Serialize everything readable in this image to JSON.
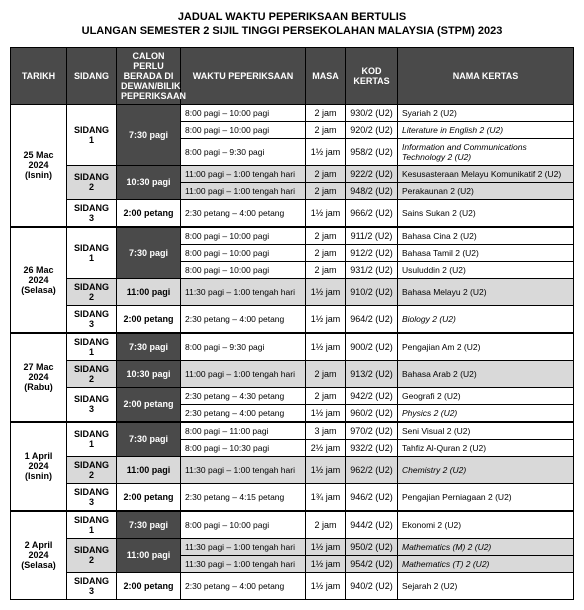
{
  "title_line1": "JADUAL WAKTU PEPERIKSAAN BERTULIS",
  "title_line2": "ULANGAN SEMESTER 2 SIJIL TINGGI PERSEKOLAHAN MALAYSIA (STPM) 2023",
  "headers": {
    "tarikh": "TARIKH",
    "sidang": "SIDANG",
    "calon": "CALON PERLU BERADA DI DEWAN/BILIK PEPERIKSAAN",
    "waktu": "WAKTU PEPERIKSAAN",
    "masa": "MASA",
    "kod": "KOD KERTAS",
    "nama": "NAMA KERTAS"
  },
  "days": [
    {
      "tarikh": "25 Mac 2024\n(Isnin)",
      "sidangs": [
        {
          "sidang": "SIDANG 1",
          "masuk": "7:30 pagi",
          "dark": true,
          "rows": [
            {
              "waktu": "8:00 pagi – 10:00 pagi",
              "masa": "2 jam",
              "kod": "930/2 (U2)",
              "nama": "Syariah 2 (U2)",
              "shade": false,
              "italic": false
            },
            {
              "waktu": "8:00 pagi – 10:00 pagi",
              "masa": "2 jam",
              "kod": "920/2 (U2)",
              "nama": "Literature in English 2 (U2)",
              "shade": false,
              "italic": true
            },
            {
              "waktu": "8:00 pagi – 9:30 pagi",
              "masa": "1½ jam",
              "kod": "958/2 (U2)",
              "nama": "Information and Communications Technology 2 (U2)",
              "shade": false,
              "italic": true
            }
          ]
        },
        {
          "sidang": "SIDANG 2",
          "masuk": "10:30 pagi",
          "dark": true,
          "rows": [
            {
              "waktu": "11:00 pagi – 1:00 tengah hari",
              "masa": "2 jam",
              "kod": "922/2 (U2)",
              "nama": "Kesusasteraan Melayu Komunikatif 2 (U2)",
              "shade": true,
              "italic": false
            },
            {
              "waktu": "11:00 pagi – 1:00 tengah hari",
              "masa": "2 jam",
              "kod": "948/2 (U2)",
              "nama": "Perakaunan 2 (U2)",
              "shade": true,
              "italic": false
            }
          ]
        },
        {
          "sidang": "SIDANG 3",
          "masuk": "2:00 petang",
          "dark": false,
          "rows": [
            {
              "waktu": "2:30 petang – 4:00 petang",
              "masa": "1½ jam",
              "kod": "966/2 (U2)",
              "nama": "Sains Sukan 2 (U2)",
              "shade": false,
              "italic": false
            }
          ]
        }
      ]
    },
    {
      "tarikh": "26 Mac 2024\n(Selasa)",
      "sidangs": [
        {
          "sidang": "SIDANG 1",
          "masuk": "7:30 pagi",
          "dark": true,
          "rows": [
            {
              "waktu": "8:00 pagi – 10:00 pagi",
              "masa": "2 jam",
              "kod": "911/2 (U2)",
              "nama": "Bahasa Cina 2 (U2)",
              "shade": false,
              "italic": false
            },
            {
              "waktu": "8:00 pagi – 10:00 pagi",
              "masa": "2 jam",
              "kod": "912/2 (U2)",
              "nama": "Bahasa Tamil 2 (U2)",
              "shade": false,
              "italic": false
            },
            {
              "waktu": "8:00 pagi – 10:00 pagi",
              "masa": "2 jam",
              "kod": "931/2 (U2)",
              "nama": "Usuluddin 2 (U2)",
              "shade": false,
              "italic": false
            }
          ]
        },
        {
          "sidang": "SIDANG 2",
          "masuk": "11:00 pagi",
          "dark": false,
          "rows": [
            {
              "waktu": "11:30 pagi – 1:00 tengah hari",
              "masa": "1½ jam",
              "kod": "910/2 (U2)",
              "nama": "Bahasa Melayu 2 (U2)",
              "shade": true,
              "italic": false
            }
          ]
        },
        {
          "sidang": "SIDANG 3",
          "masuk": "2:00 petang",
          "dark": false,
          "rows": [
            {
              "waktu": "2:30 petang – 4:00 petang",
              "masa": "1½ jam",
              "kod": "964/2 (U2)",
              "nama": "Biology 2 (U2)",
              "shade": false,
              "italic": true
            }
          ]
        }
      ]
    },
    {
      "tarikh": "27 Mac 2024\n(Rabu)",
      "sidangs": [
        {
          "sidang": "SIDANG 1",
          "masuk": "7:30 pagi",
          "dark": true,
          "rows": [
            {
              "waktu": "8:00 pagi – 9:30 pagi",
              "masa": "1½ jam",
              "kod": "900/2 (U2)",
              "nama": "Pengajian Am 2 (U2)",
              "shade": false,
              "italic": false
            }
          ]
        },
        {
          "sidang": "SIDANG 2",
          "masuk": "10:30 pagi",
          "dark": true,
          "rows": [
            {
              "waktu": "11:00 pagi – 1:00 tengah hari",
              "masa": "2 jam",
              "kod": "913/2 (U2)",
              "nama": "Bahasa Arab 2 (U2)",
              "shade": true,
              "italic": false
            }
          ]
        },
        {
          "sidang": "SIDANG 3",
          "masuk": "2:00 petang",
          "dark": true,
          "rows": [
            {
              "waktu": "2:30 petang – 4:30 petang",
              "masa": "2 jam",
              "kod": "942/2 (U2)",
              "nama": "Geografi 2 (U2)",
              "shade": false,
              "italic": false
            },
            {
              "waktu": "2:30 petang – 4:00 petang",
              "masa": "1½ jam",
              "kod": "960/2 (U2)",
              "nama": "Physics 2 (U2)",
              "shade": false,
              "italic": true
            }
          ]
        }
      ]
    },
    {
      "tarikh": "1 April 2024\n(Isnin)",
      "sidangs": [
        {
          "sidang": "SIDANG 1",
          "masuk": "7:30 pagi",
          "dark": true,
          "rows": [
            {
              "waktu": "8:00 pagi – 11:00 pagi",
              "masa": "3 jam",
              "kod": "970/2 (U2)",
              "nama": "Seni Visual 2 (U2)",
              "shade": false,
              "italic": false
            },
            {
              "waktu": "8:00 pagi – 10:30 pagi",
              "masa": "2½ jam",
              "kod": "932/2 (U2)",
              "nama": "Tahfiz Al-Quran 2 (U2)",
              "shade": false,
              "italic": false
            }
          ]
        },
        {
          "sidang": "SIDANG 2",
          "masuk": "11:00 pagi",
          "dark": false,
          "rows": [
            {
              "waktu": "11:30 pagi – 1:00 tengah hari",
              "masa": "1½ jam",
              "kod": "962/2 (U2)",
              "nama": "Chemistry 2 (U2)",
              "shade": true,
              "italic": true
            }
          ]
        },
        {
          "sidang": "SIDANG 3",
          "masuk": "2:00 petang",
          "dark": false,
          "rows": [
            {
              "waktu": "2:30 petang – 4:15 petang",
              "masa": "1¾ jam",
              "kod": "946/2 (U2)",
              "nama": "Pengajian Perniagaan 2 (U2)",
              "shade": false,
              "italic": false
            }
          ]
        }
      ]
    },
    {
      "tarikh": "2 April 2024\n(Selasa)",
      "sidangs": [
        {
          "sidang": "SIDANG 1",
          "masuk": "7:30 pagi",
          "dark": true,
          "rows": [
            {
              "waktu": "8:00 pagi – 10:00 pagi",
              "masa": "2 jam",
              "kod": "944/2 (U2)",
              "nama": "Ekonomi 2 (U2)",
              "shade": false,
              "italic": false
            }
          ]
        },
        {
          "sidang": "SIDANG 2",
          "masuk": "11:00 pagi",
          "dark": true,
          "rows": [
            {
              "waktu": "11:30 pagi – 1:00 tengah hari",
              "masa": "1½ jam",
              "kod": "950/2 (U2)",
              "nama": "Mathematics (M) 2 (U2)",
              "shade": true,
              "italic": true
            },
            {
              "waktu": "11:30 pagi – 1:00 tengah hari",
              "masa": "1½ jam",
              "kod": "954/2 (U2)",
              "nama": "Mathematics (T) 2 (U2)",
              "shade": true,
              "italic": true
            }
          ]
        },
        {
          "sidang": "SIDANG 3",
          "masuk": "2:00 petang",
          "dark": false,
          "rows": [
            {
              "waktu": "2:30 petang – 4:00 petang",
              "masa": "1½ jam",
              "kod": "940/2 (U2)",
              "nama": "Sejarah 2 (U2)",
              "shade": false,
              "italic": false
            }
          ]
        }
      ]
    }
  ]
}
